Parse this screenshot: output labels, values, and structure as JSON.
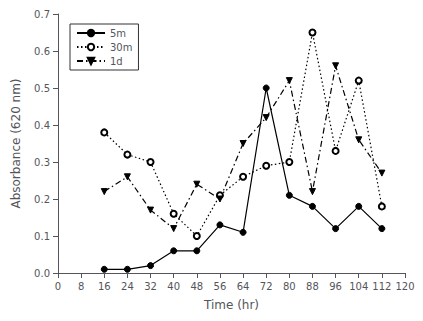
{
  "chart_data": {
    "type": "line",
    "xlabel": "Time (hr)",
    "ylabel": "Absorbance (620 nm)",
    "x": [
      16,
      24,
      32,
      40,
      48,
      56,
      64,
      72,
      80,
      88,
      96,
      104,
      112
    ],
    "xlim": [
      0,
      120
    ],
    "ylim": [
      0,
      0.7
    ],
    "xticks": [
      0,
      8,
      16,
      24,
      32,
      40,
      48,
      56,
      64,
      72,
      80,
      88,
      96,
      104,
      112,
      120
    ],
    "yticks": [
      {
        "value": 0,
        "label": "0.0"
      },
      0.1,
      0.2,
      0.3,
      0.4,
      0.5,
      0.6,
      0.7
    ],
    "grid": false,
    "legend": "upper left",
    "series": [
      {
        "name": "5m",
        "color": "black",
        "marker": "circle",
        "line_style": "solid",
        "values": [
          0.01,
          0.01,
          0.02,
          0.06,
          0.06,
          0.13,
          0.11,
          0.5,
          0.21,
          0.18,
          0.12,
          0.18,
          0.12
        ]
      },
      {
        "name": "30m",
        "color": "black",
        "marker": "circle-open",
        "line_style": "dotted",
        "values": [
          0.38,
          0.32,
          0.3,
          0.16,
          0.1,
          0.21,
          0.26,
          0.29,
          0.3,
          0.65,
          0.33,
          0.52,
          0.18
        ]
      },
      {
        "name": "1d",
        "color": "black",
        "marker": "triangle-down",
        "line_style": "dashdot",
        "values": [
          0.22,
          0.26,
          0.17,
          0.12,
          0.24,
          0.2,
          0.35,
          0.42,
          0.52,
          0.22,
          0.56,
          0.36,
          0.27
        ]
      }
    ]
  }
}
